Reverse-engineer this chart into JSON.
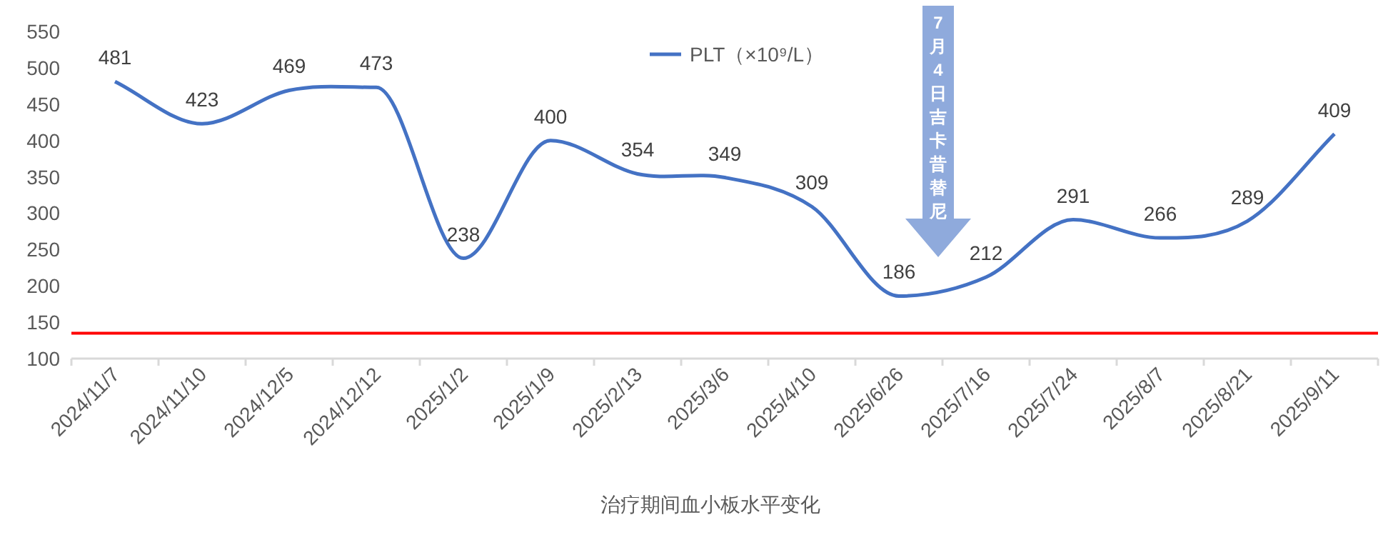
{
  "chart_data": {
    "type": "line",
    "xlabel": "治疗期间血小板水平变化",
    "categories": [
      "2024/11/7",
      "2024/11/10",
      "2024/12/5",
      "2024/12/12",
      "2025/1/2",
      "2025/1/9",
      "2025/2/13",
      "2025/3/6",
      "2025/4/10",
      "2025/6/26",
      "2025/7/16",
      "2025/7/24",
      "2025/8/7",
      "2025/8/21",
      "2025/9/11"
    ],
    "series": [
      {
        "name": "PLT（×10⁹/L）",
        "color": "#4472c4",
        "values": [
          481,
          423,
          469,
          473,
          238,
          400,
          354,
          349,
          309,
          186,
          212,
          291,
          266,
          289,
          409
        ]
      }
    ],
    "ylim": [
      100,
      550
    ],
    "yticks": [
      100,
      150,
      200,
      250,
      300,
      350,
      400,
      450,
      500,
      550
    ],
    "ref_lines": [
      {
        "axis": "y",
        "value": 135,
        "color": "#ff0000"
      }
    ],
    "annotations": [
      "7月4日吉卡昔替尼"
    ],
    "data_labels": true,
    "legend": "top",
    "grid": false,
    "marker": "none",
    "line_style": "solid"
  }
}
